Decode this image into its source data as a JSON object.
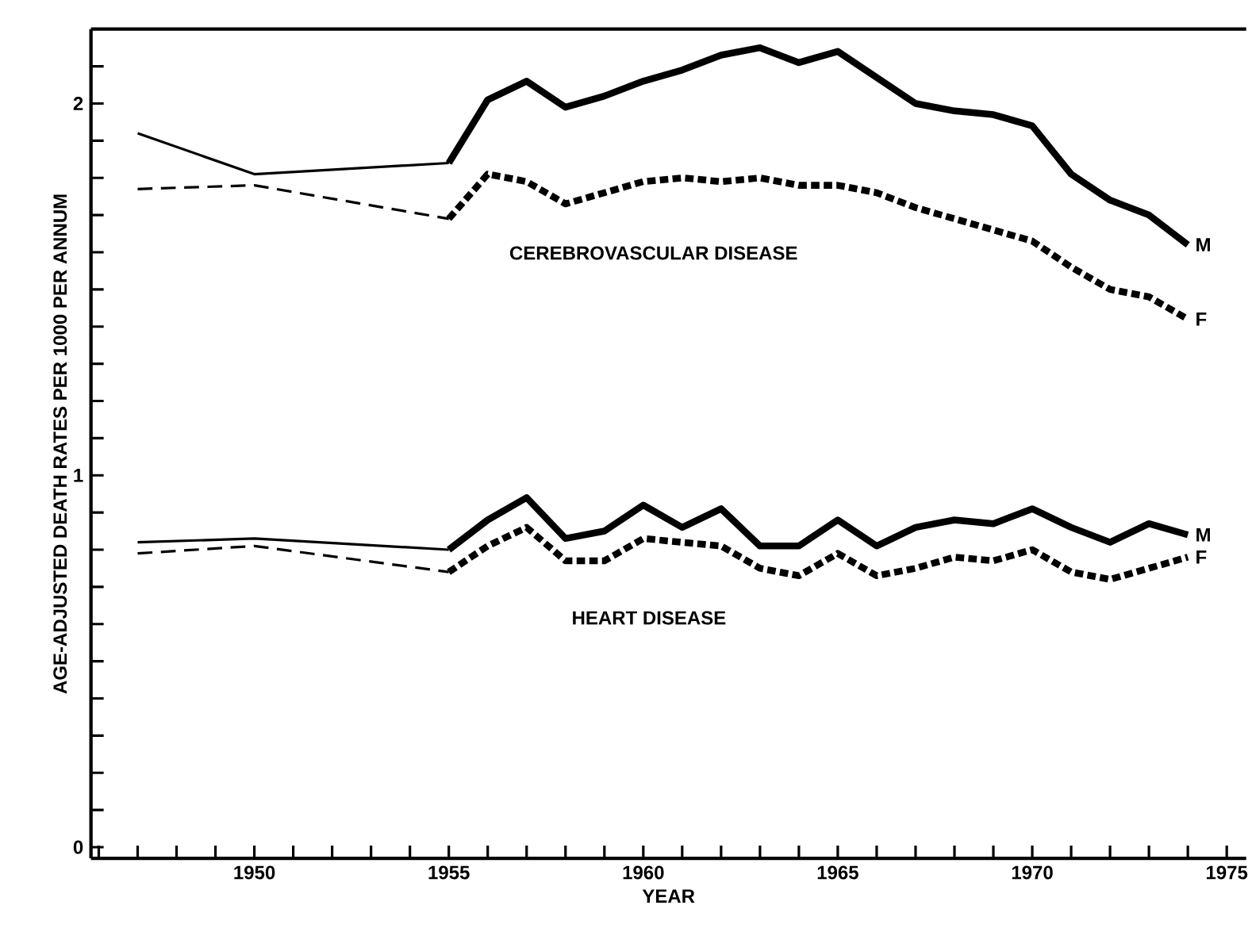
{
  "chart_data": {
    "type": "line",
    "xlabel": "YEAR",
    "ylabel": "AGE-ADJUSTED DEATH RATES PER 1000 PER ANNUM",
    "xlim": [
      1945.8,
      1975.5
    ],
    "ylim": [
      -0.03,
      2.2
    ],
    "xticks": [
      {
        "value": 1946,
        "label": null
      },
      {
        "value": 1947,
        "label": null
      },
      {
        "value": 1948,
        "label": null
      },
      {
        "value": 1949,
        "label": null
      },
      1950,
      {
        "value": 1951,
        "label": null
      },
      {
        "value": 1952,
        "label": null
      },
      {
        "value": 1953,
        "label": null
      },
      {
        "value": 1954,
        "label": null
      },
      1955,
      {
        "value": 1956,
        "label": null
      },
      {
        "value": 1957,
        "label": null
      },
      {
        "value": 1958,
        "label": null
      },
      {
        "value": 1959,
        "label": null
      },
      1960,
      {
        "value": 1961,
        "label": null
      },
      {
        "value": 1962,
        "label": null
      },
      {
        "value": 1963,
        "label": null
      },
      {
        "value": 1964,
        "label": null
      },
      1965,
      {
        "value": 1966,
        "label": null
      },
      {
        "value": 1967,
        "label": null
      },
      {
        "value": 1968,
        "label": null
      },
      {
        "value": 1969,
        "label": null
      },
      1970,
      {
        "value": 1971,
        "label": null
      },
      {
        "value": 1972,
        "label": null
      },
      {
        "value": 1973,
        "label": null
      },
      {
        "value": 1974,
        "label": null
      },
      1975
    ],
    "yticks": [
      0,
      {
        "value": 0.1,
        "label": null
      },
      {
        "value": 0.2,
        "label": null
      },
      {
        "value": 0.3,
        "label": null
      },
      {
        "value": 0.4,
        "label": null
      },
      {
        "value": 0.5,
        "label": null
      },
      {
        "value": 0.6,
        "label": null
      },
      {
        "value": 0.7,
        "label": null
      },
      {
        "value": 0.8,
        "label": null
      },
      {
        "value": 0.9,
        "label": null
      },
      1,
      {
        "value": 1.1,
        "label": null
      },
      {
        "value": 1.2,
        "label": null
      },
      {
        "value": 1.3,
        "label": null
      },
      {
        "value": 1.4,
        "label": null
      },
      {
        "value": 1.5,
        "label": null
      },
      {
        "value": 1.6,
        "label": null
      },
      {
        "value": 1.7,
        "label": null
      },
      {
        "value": 1.8,
        "label": null
      },
      {
        "value": 1.9,
        "label": null
      },
      2,
      {
        "value": 2.1,
        "label": null
      }
    ],
    "grid": false,
    "series": [
      {
        "color": "#000000",
        "line_style": "solid",
        "x": [
          1947,
          1950,
          1955
        ],
        "values": [
          1.92,
          1.81,
          1.84
        ]
      },
      {
        "name": "M",
        "color": "#000000",
        "line_style": "solid",
        "x": [
          1955,
          1956,
          1957,
          1958,
          1959,
          1960,
          1961,
          1962,
          1963,
          1964,
          1965,
          1966,
          1967,
          1968,
          1969,
          1970,
          1971,
          1972,
          1973,
          1974
        ],
        "values": [
          1.84,
          2.01,
          2.06,
          1.99,
          2.02,
          2.06,
          2.09,
          2.13,
          2.15,
          2.11,
          2.14,
          2.07,
          2.0,
          1.98,
          1.97,
          1.94,
          1.81,
          1.74,
          1.7,
          1.62
        ]
      },
      {
        "color": "#000000",
        "line_style": "dashed",
        "x": [
          1947,
          1950,
          1955
        ],
        "values": [
          1.77,
          1.78,
          1.69
        ]
      },
      {
        "name": "F",
        "color": "#000000",
        "line_style": "dotted",
        "x": [
          1955,
          1956,
          1957,
          1958,
          1959,
          1960,
          1961,
          1962,
          1963,
          1964,
          1965,
          1966,
          1967,
          1968,
          1969,
          1970,
          1971,
          1972,
          1973,
          1974
        ],
        "values": [
          1.69,
          1.81,
          1.79,
          1.73,
          1.76,
          1.79,
          1.8,
          1.79,
          1.8,
          1.78,
          1.78,
          1.76,
          1.72,
          1.69,
          1.66,
          1.63,
          1.56,
          1.5,
          1.48,
          1.42
        ]
      },
      {
        "color": "#000000",
        "line_style": "solid",
        "x": [
          1947,
          1950,
          1955
        ],
        "values": [
          0.82,
          0.83,
          0.8
        ]
      },
      {
        "name": "M",
        "color": "#000000",
        "line_style": "solid",
        "x": [
          1955,
          1956,
          1957,
          1958,
          1959,
          1960,
          1961,
          1962,
          1963,
          1964,
          1965,
          1966,
          1967,
          1968,
          1969,
          1970,
          1971,
          1972,
          1973,
          1974
        ],
        "values": [
          0.8,
          0.88,
          0.94,
          0.83,
          0.85,
          0.92,
          0.86,
          0.91,
          0.81,
          0.81,
          0.88,
          0.81,
          0.86,
          0.88,
          0.87,
          0.91,
          0.86,
          0.82,
          0.87,
          0.84
        ]
      },
      {
        "color": "#000000",
        "line_style": "dashed",
        "x": [
          1947,
          1950,
          1955
        ],
        "values": [
          0.79,
          0.81,
          0.74
        ]
      },
      {
        "name": "F",
        "color": "#000000",
        "line_style": "dotted",
        "x": [
          1955,
          1956,
          1957,
          1958,
          1959,
          1960,
          1961,
          1962,
          1963,
          1964,
          1965,
          1966,
          1967,
          1968,
          1969,
          1970,
          1971,
          1972,
          1973,
          1974
        ],
        "values": [
          0.74,
          0.81,
          0.86,
          0.77,
          0.77,
          0.83,
          0.82,
          0.81,
          0.75,
          0.73,
          0.79,
          0.73,
          0.75,
          0.78,
          0.77,
          0.8,
          0.74,
          0.72,
          0.75,
          0.78
        ]
      }
    ],
    "annotations": [
      "CEREBROVASCULAR DISEASE",
      "HEART DISEASE"
    ]
  }
}
